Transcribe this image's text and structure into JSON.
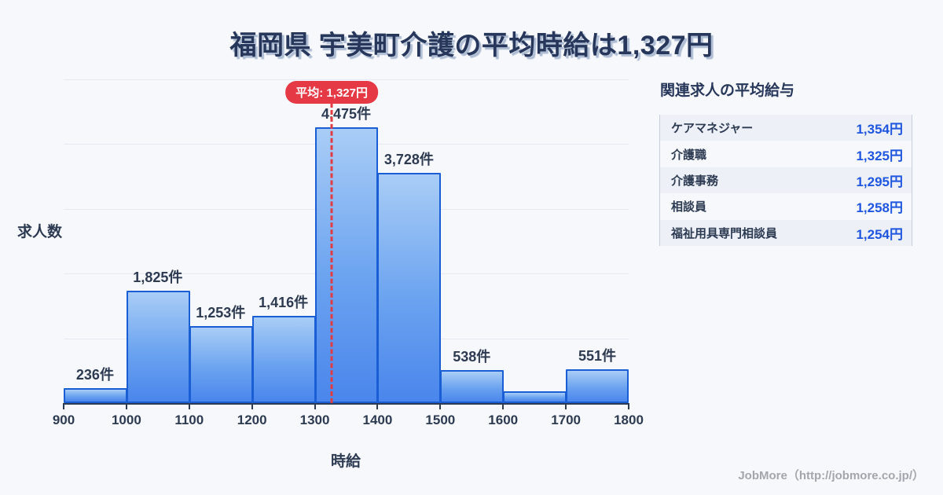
{
  "title": "福岡県 宇美町介護の平均時給は1,327円",
  "chart_data": {
    "type": "bar",
    "subtype": "histogram",
    "xlabel": "時給",
    "ylabel": "求人数",
    "bin_edges": [
      900,
      1000,
      1100,
      1200,
      1300,
      1400,
      1500,
      1600,
      1700,
      1800
    ],
    "categories": [
      "900-1000",
      "1000-1100",
      "1100-1200",
      "1200-1300",
      "1300-1400",
      "1400-1500",
      "1500-1600",
      "1600-1700",
      "1700-1800"
    ],
    "values": [
      236,
      1825,
      1253,
      1416,
      4475,
      3728,
      538,
      185,
      551
    ],
    "bar_labels": [
      "236件",
      "1,825件",
      "1,253件",
      "1,416件",
      "4,475件",
      "3,728件",
      "538件",
      "",
      "551件"
    ],
    "x_ticks": [
      "900",
      "1000",
      "1100",
      "1200",
      "1300",
      "1400",
      "1500",
      "1600",
      "1700",
      "1800"
    ],
    "xlim": [
      900,
      1800
    ],
    "ylim": [
      0,
      5250
    ],
    "grid": "horizontal",
    "mean": {
      "value": 1327,
      "label": "平均: 1,327円"
    }
  },
  "side_panel": {
    "title": "関連求人の平均給与",
    "rows": [
      {
        "label": "ケアマネジャー",
        "value": "1,354円"
      },
      {
        "label": "介護職",
        "value": "1,325円"
      },
      {
        "label": "介護事務",
        "value": "1,295円"
      },
      {
        "label": "相談員",
        "value": "1,258円"
      },
      {
        "label": "福祉用具専門相談員",
        "value": "1,254円"
      }
    ]
  },
  "footer": {
    "credit": "JobMore（http://jobmore.co.jp/）"
  },
  "colors": {
    "background": "#f7f8fb",
    "title_text": "#27375b",
    "bar_fill_top": "#a9cdf6",
    "bar_fill_bottom": "#4a86ec",
    "bar_border": "#1a5ed6",
    "mean_red": "#e63946",
    "value_blue": "#1f56e0",
    "grid_line": "#e6e9f1",
    "axis_line": "#2c3a52",
    "footer_gray": "#a2a6ad"
  }
}
